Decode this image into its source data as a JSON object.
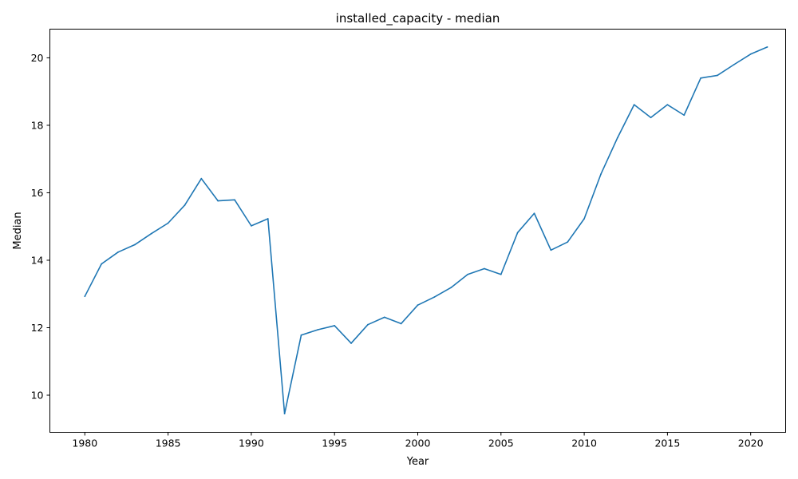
{
  "chart_data": {
    "type": "line",
    "title": "installed_capacity - median",
    "xlabel": "Year",
    "ylabel": "Median",
    "xlim": [
      1977.9,
      2022.1
    ],
    "ylim": [
      8.9,
      20.85
    ],
    "xticks": [
      1980,
      1985,
      1990,
      1995,
      2000,
      2005,
      2010,
      2015,
      2020
    ],
    "yticks": [
      10,
      12,
      14,
      16,
      18,
      20
    ],
    "grid": false,
    "line_color": "#1f77b4",
    "x": [
      1980,
      1981,
      1982,
      1983,
      1984,
      1985,
      1986,
      1987,
      1988,
      1989,
      1990,
      1991,
      1992,
      1993,
      1994,
      1995,
      1996,
      1997,
      1998,
      1999,
      2000,
      2001,
      2002,
      2003,
      2004,
      2005,
      2006,
      2007,
      2008,
      2009,
      2010,
      2011,
      2012,
      2013,
      2014,
      2015,
      2016,
      2017,
      2018,
      2019,
      2020,
      2021
    ],
    "series": [
      {
        "values": [
          12.93,
          13.89,
          14.24,
          14.46,
          14.79,
          15.1,
          15.63,
          16.42,
          15.76,
          15.79,
          15.02,
          15.23,
          9.45,
          11.78,
          11.94,
          12.06,
          11.54,
          12.09,
          12.31,
          12.12,
          12.67,
          12.91,
          13.19,
          13.58,
          13.75,
          13.58,
          14.82,
          15.39,
          14.3,
          14.54,
          15.23,
          16.55,
          17.63,
          18.61,
          18.23,
          18.61,
          18.3,
          19.4,
          19.48,
          19.8,
          20.11,
          20.32
        ]
      }
    ]
  }
}
